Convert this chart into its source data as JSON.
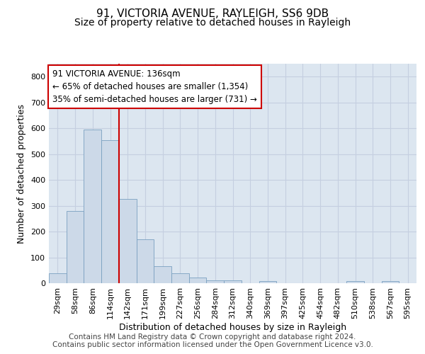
{
  "title_line1": "91, VICTORIA AVENUE, RAYLEIGH, SS6 9DB",
  "title_line2": "Size of property relative to detached houses in Rayleigh",
  "xlabel": "Distribution of detached houses by size in Rayleigh",
  "ylabel": "Number of detached properties",
  "categories": [
    "29sqm",
    "58sqm",
    "86sqm",
    "114sqm",
    "142sqm",
    "171sqm",
    "199sqm",
    "227sqm",
    "256sqm",
    "284sqm",
    "312sqm",
    "340sqm",
    "369sqm",
    "397sqm",
    "425sqm",
    "454sqm",
    "482sqm",
    "510sqm",
    "538sqm",
    "567sqm",
    "595sqm"
  ],
  "values": [
    38,
    280,
    595,
    555,
    325,
    170,
    65,
    38,
    22,
    12,
    10,
    0,
    8,
    0,
    0,
    0,
    0,
    8,
    0,
    8,
    0
  ],
  "bar_color": "#ccd9e8",
  "bar_edge_color": "#7aa0c0",
  "vline_color": "#cc0000",
  "vline_pos": 4.5,
  "annotation_text": "91 VICTORIA AVENUE: 136sqm\n← 65% of detached houses are smaller (1,354)\n35% of semi-detached houses are larger (731) →",
  "annotation_box_facecolor": "#ffffff",
  "annotation_box_edgecolor": "#cc0000",
  "grid_color": "#c5cfe0",
  "background_color": "#dce6f0",
  "ylim": [
    0,
    850
  ],
  "yticks": [
    0,
    100,
    200,
    300,
    400,
    500,
    600,
    700,
    800
  ],
  "footer_text": "Contains HM Land Registry data © Crown copyright and database right 2024.\nContains public sector information licensed under the Open Government Licence v3.0.",
  "title_fontsize": 11,
  "subtitle_fontsize": 10,
  "ylabel_fontsize": 9,
  "xlabel_fontsize": 9,
  "tick_fontsize": 8,
  "annotation_fontsize": 8.5,
  "footer_fontsize": 7.5
}
